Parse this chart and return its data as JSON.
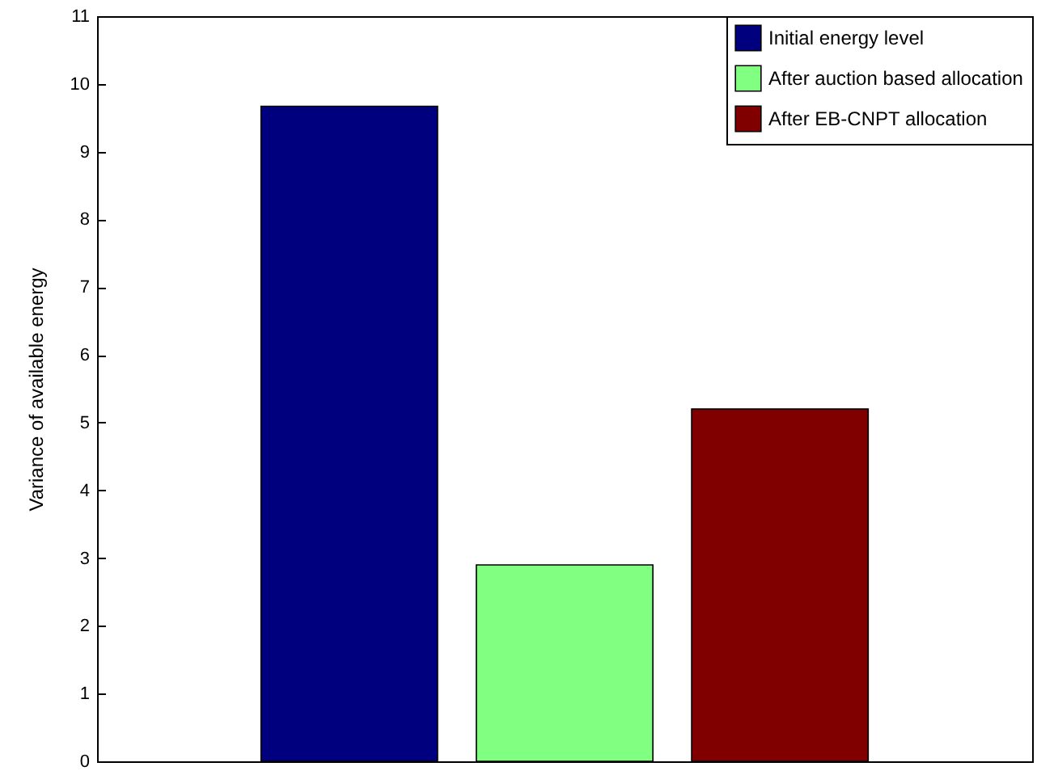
{
  "chart_data": {
    "type": "bar",
    "ylabel": "Variance of available energy",
    "categories": [
      null
    ],
    "series": [
      {
        "name": "Initial energy level",
        "color": "#00007f",
        "values": [
          9.67
        ]
      },
      {
        "name": "After auction based allocation",
        "color": "#80ff80",
        "values": [
          2.9
        ]
      },
      {
        "name": "After EB-CNPT allocation",
        "color": "#800000",
        "values": [
          5.2
        ]
      }
    ],
    "ylim": [
      0,
      11
    ],
    "yticks": [
      0,
      1,
      2,
      3,
      4,
      5,
      6,
      7,
      8,
      9,
      10,
      11
    ],
    "legend": "top right",
    "tick_labels": "y"
  }
}
